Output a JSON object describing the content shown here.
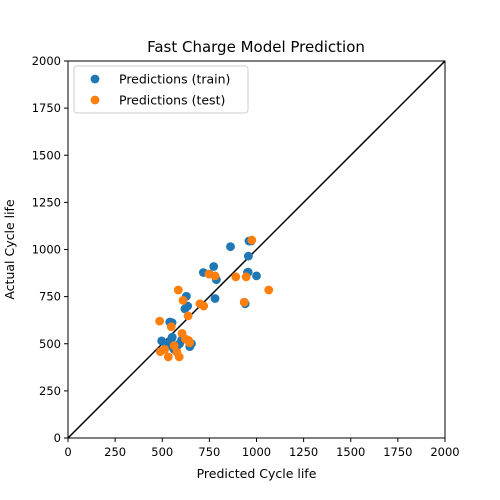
{
  "chart_data": {
    "type": "scatter",
    "title": "Fast Charge Model Prediction",
    "xlabel": "Predicted Cycle life",
    "ylabel": "Actual Cycle life",
    "xlim": [
      0,
      2000
    ],
    "ylim": [
      0,
      2000
    ],
    "xticks": [
      "0",
      "250",
      "500",
      "750",
      "1000",
      "1250",
      "1500",
      "1750",
      "2000"
    ],
    "yticks": [
      "0",
      "250",
      "500",
      "750",
      "1000",
      "1250",
      "1500",
      "1750",
      "2000"
    ],
    "grid": false,
    "legend_position": "top-left",
    "reference_line": {
      "type": "diagonal",
      "from": [
        0,
        0
      ],
      "to": [
        2000,
        2000
      ],
      "color": "#000000"
    },
    "series": [
      {
        "name": "Predictions (train)",
        "color": "#1f77b4",
        "points": [
          [
            497,
            515
          ],
          [
            520,
            500
          ],
          [
            532,
            490
          ],
          [
            548,
            522
          ],
          [
            553,
            535
          ],
          [
            540,
            615
          ],
          [
            552,
            612
          ],
          [
            562,
            470
          ],
          [
            575,
            480
          ],
          [
            592,
            500
          ],
          [
            603,
            520
          ],
          [
            620,
            685
          ],
          [
            628,
            752
          ],
          [
            635,
            700
          ],
          [
            646,
            485
          ],
          [
            655,
            500
          ],
          [
            718,
            878
          ],
          [
            750,
            870
          ],
          [
            773,
            910
          ],
          [
            787,
            840
          ],
          [
            780,
            740
          ],
          [
            862,
            1015
          ],
          [
            935,
            720
          ],
          [
            940,
            712
          ],
          [
            952,
            878
          ],
          [
            957,
            965
          ],
          [
            960,
            1045
          ],
          [
            972,
            1045
          ],
          [
            1000,
            860
          ],
          [
            956,
            880
          ]
        ]
      },
      {
        "name": "Predictions (test)",
        "color": "#ff7f0e",
        "points": [
          [
            486,
            620
          ],
          [
            490,
            458
          ],
          [
            513,
            470
          ],
          [
            532,
            430
          ],
          [
            548,
            590
          ],
          [
            563,
            490
          ],
          [
            578,
            455
          ],
          [
            585,
            785
          ],
          [
            590,
            430
          ],
          [
            605,
            555
          ],
          [
            610,
            730
          ],
          [
            623,
            525
          ],
          [
            637,
            648
          ],
          [
            640,
            518
          ],
          [
            645,
            505
          ],
          [
            700,
            712
          ],
          [
            720,
            700
          ],
          [
            748,
            870
          ],
          [
            780,
            860
          ],
          [
            890,
            855
          ],
          [
            935,
            720
          ],
          [
            945,
            855
          ],
          [
            975,
            1050
          ],
          [
            1065,
            785
          ]
        ]
      }
    ]
  }
}
